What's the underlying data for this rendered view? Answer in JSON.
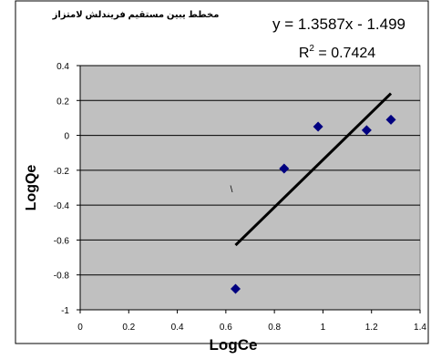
{
  "chart_data": {
    "type": "scatter",
    "title": "مخطط يبين مستقيم فريندلش لامتزاز",
    "equation": "y = 1.3587x - 1.499",
    "r2_prefix": "R",
    "r2_sup": "2",
    "r2_value": " = 0.7424",
    "xlabel": "LogCe",
    "ylabel": "LogQe",
    "xlim": [
      0,
      1.4
    ],
    "ylim": [
      -1,
      0.4
    ],
    "x_ticks": [
      "0",
      "0.2",
      "0.4",
      "0.6",
      "0.8",
      "1",
      "1.2",
      "1.4"
    ],
    "y_ticks": [
      "0.4",
      "0.2",
      "0",
      "-0.2",
      "-0.4",
      "-0.6",
      "-0.8",
      "-1"
    ],
    "grid": "horizontal",
    "stray_mark": "\\",
    "series": [
      {
        "marker": "diamond",
        "color": "#000080",
        "points": [
          {
            "x": 0.64,
            "y": -0.88
          },
          {
            "x": 0.84,
            "y": -0.19
          },
          {
            "x": 0.98,
            "y": 0.05
          },
          {
            "x": 1.18,
            "y": 0.03
          },
          {
            "x": 1.28,
            "y": 0.09
          }
        ]
      }
    ],
    "trendline": {
      "x_start": 0.64,
      "x_end": 1.28,
      "slope": 1.3587,
      "intercept": -1.499,
      "color": "#000000"
    },
    "plot_bg": "#c0c0c0"
  }
}
